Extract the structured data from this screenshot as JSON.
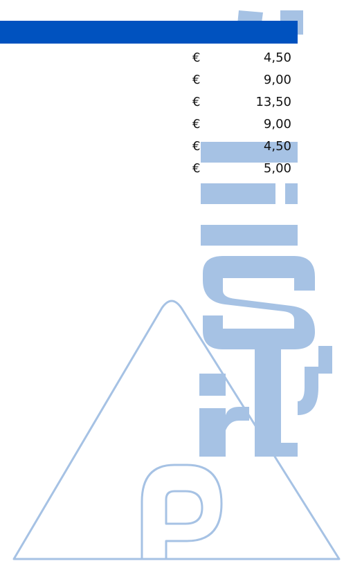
{
  "header": {
    "bar_color": "#0052bf"
  },
  "price_list": {
    "currency_symbol": "€",
    "rows": [
      {
        "currency": "€",
        "amount": "4,50"
      },
      {
        "currency": "€",
        "amount": "9,00"
      },
      {
        "currency": "€",
        "amount": "13,50"
      },
      {
        "currency": "€",
        "amount": "9,00"
      },
      {
        "currency": "€",
        "amount": "4,50"
      },
      {
        "currency": "€",
        "amount": "5,00"
      }
    ]
  },
  "watermark": {
    "text": "prijslijst",
    "icon": "triangle-p-logo",
    "color": "#a6c2e4"
  }
}
